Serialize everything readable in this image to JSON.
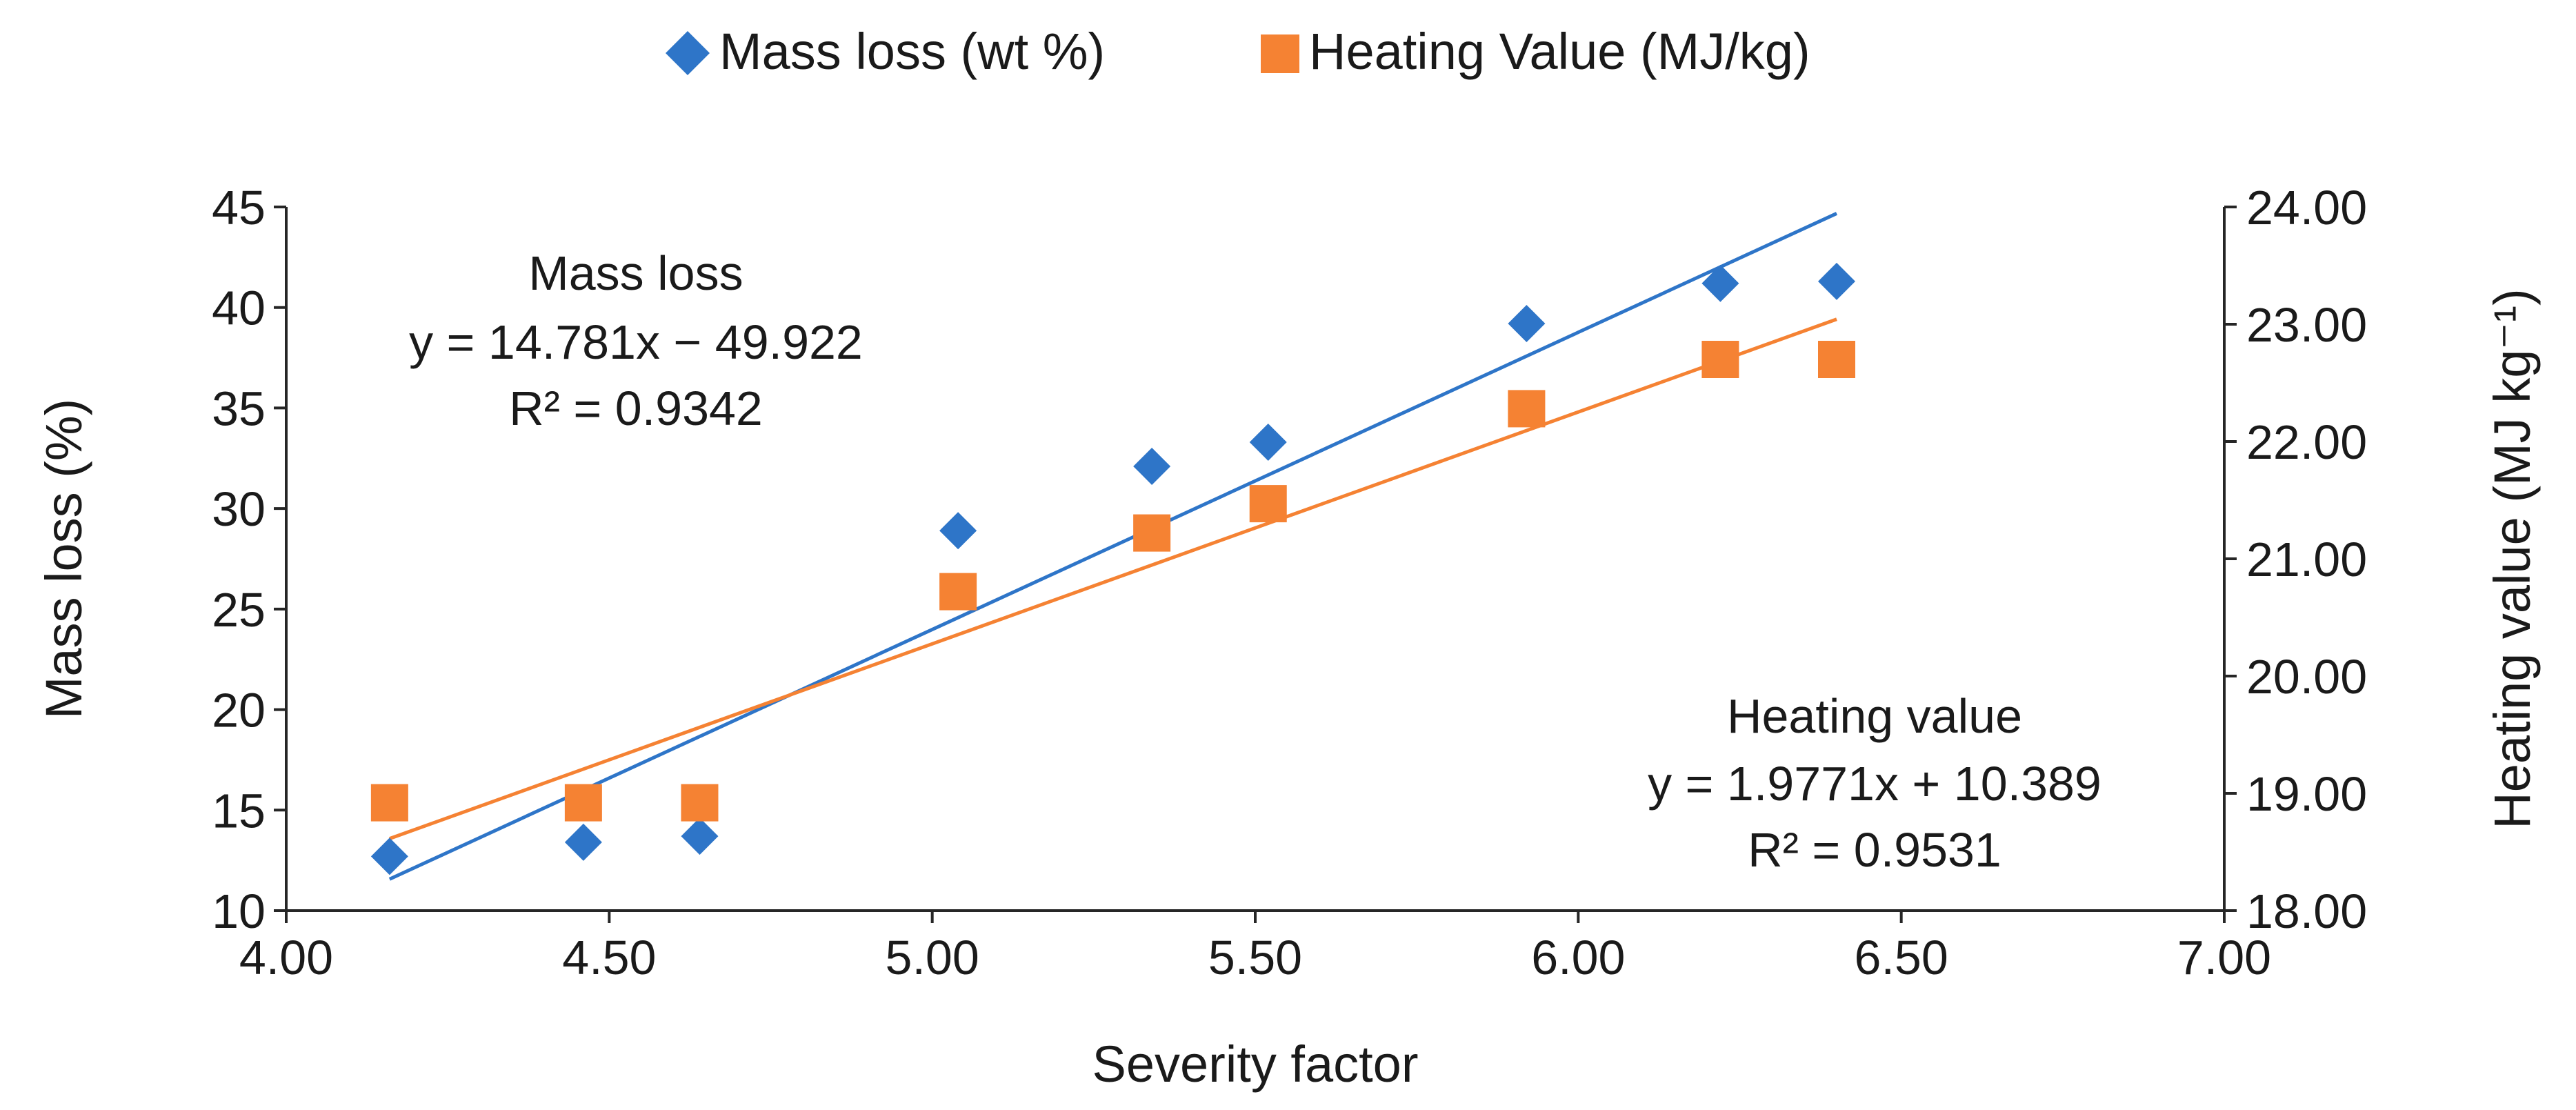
{
  "chart_data": {
    "type": "scatter",
    "xlabel": "Severity factor",
    "ylabel_left": "Mass loss (%)",
    "ylabel_right": "Heating value (MJ kg⁻¹)",
    "xlim": [
      4.0,
      7.0
    ],
    "ylim_left": [
      10,
      45
    ],
    "ylim_right": [
      18.0,
      24.0
    ],
    "x_ticks": [
      "4.00",
      "4.50",
      "5.00",
      "5.50",
      "6.00",
      "6.50",
      "7.00"
    ],
    "y_left_ticks": [
      "10",
      "15",
      "20",
      "25",
      "30",
      "35",
      "40",
      "45"
    ],
    "y_right_ticks": [
      "18.00",
      "19.00",
      "20.00",
      "21.00",
      "22.00",
      "23.00",
      "24.00"
    ],
    "x_tick_values": [
      4.0,
      4.5,
      5.0,
      5.5,
      6.0,
      6.5,
      7.0
    ],
    "y_left_tick_values": [
      10,
      15,
      20,
      25,
      30,
      35,
      40,
      45
    ],
    "y_right_tick_values": [
      18,
      19,
      20,
      21,
      22,
      23,
      24
    ],
    "legend": [
      "Mass loss (wt %)",
      "Heating Value (MJ/kg)"
    ],
    "series": [
      {
        "name": "Mass loss (wt %)",
        "axis": "left",
        "marker": "diamond",
        "color": "#2E75C8",
        "x": [
          4.16,
          4.46,
          4.64,
          5.04,
          5.34,
          5.52,
          5.92,
          6.22,
          6.4
        ],
        "y": [
          12.7,
          13.4,
          13.7,
          28.9,
          32.1,
          33.3,
          39.2,
          41.2,
          41.3
        ],
        "trend": {
          "slope": 14.781,
          "intercept": -49.922,
          "x_range": [
            4.16,
            6.4
          ]
        }
      },
      {
        "name": "Heating Value (MJ/kg)",
        "axis": "right",
        "marker": "square",
        "color": "#F58233",
        "x": [
          4.16,
          4.46,
          4.64,
          5.04,
          5.34,
          5.52,
          5.92,
          6.22,
          6.4
        ],
        "y": [
          18.92,
          18.92,
          18.92,
          20.72,
          21.22,
          21.47,
          22.28,
          22.7,
          22.7
        ],
        "trend": {
          "slope": 1.9771,
          "intercept": 10.389,
          "x_range": [
            4.16,
            6.4
          ]
        }
      }
    ],
    "annotations": {
      "mass": {
        "title": "Mass loss",
        "equation": "y = 14.781x − 49.922",
        "r2": "R² = 0.9342"
      },
      "heat": {
        "title": "Heating value",
        "equation": "y = 1.9771x + 10.389",
        "r2": "R² = 0.9531"
      }
    }
  }
}
